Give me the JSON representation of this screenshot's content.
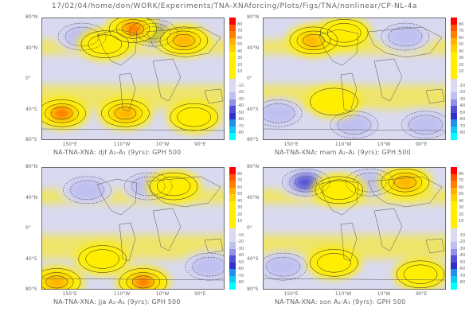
{
  "header": {
    "path": "17/02/04/home/don/WORK/Experiments/TNA-XNAforcing/Plots/Figs/TNA/nonlinear/CP-NL-4a"
  },
  "colors": {
    "scale": [
      "#ff0000",
      "#ff5500",
      "#ff8000",
      "#ffb000",
      "#ffd000",
      "#ffee00",
      "#ffee00",
      "#ffee00",
      "#ffee00",
      "#dadaf2",
      "#dadaf2",
      "#c0c0f0",
      "#9090e6",
      "#5050d2",
      "#3030c8",
      "#2090e8",
      "#10c8f0",
      "#00ffff"
    ]
  },
  "colorbar_labels": [
    "80",
    "70",
    "60",
    "50",
    "40",
    "30",
    "20",
    "10",
    "",
    "-10",
    "-20",
    "-30",
    "-40",
    "-50",
    "-60",
    "-70",
    "-80"
  ],
  "panels": [
    {
      "id": "djf",
      "caption": "NA-TNA-XNA: djf A₂-A₁ (9yrs): GPH 500",
      "ylabels": [
        "80°N",
        "40°N",
        "0°",
        "40°S",
        "80°S"
      ],
      "xlabels": [
        "150°E",
        "110°W",
        "10°W",
        "90°E"
      ]
    },
    {
      "id": "mam",
      "caption": "NA-TNA-XNA: mam A₂-A₁ (9yrs): GPH 500",
      "ylabels": [
        "80°N",
        "40°N",
        "0°",
        "40°S",
        "80°S"
      ],
      "xlabels": [
        "150°E",
        "110°W",
        "10°W",
        "90°E"
      ]
    },
    {
      "id": "jja",
      "caption": "NA-TNA-XNA: jja A₂-A₁ (9yrs): GPH 500",
      "ylabels": [
        "80°N",
        "40°N",
        "0°",
        "40°S",
        "80°S"
      ],
      "xlabels": [
        "150°E",
        "110°W",
        "10°W",
        "90°E"
      ]
    },
    {
      "id": "son",
      "caption": "NA-TNA-XNA: son A₂-A₁ (9yrs): GPH 500",
      "ylabels": [
        "80°N",
        "40°N",
        "0°",
        "40°S",
        "80°S"
      ],
      "xlabels": [
        "150°E",
        "110°W",
        "10°W",
        "90°E"
      ]
    }
  ],
  "chart_data": [
    {
      "type": "heatmap",
      "field": "GPH 500 anomaly A2-A1",
      "season": "djf",
      "levels": [
        -80,
        -70,
        -60,
        -50,
        -40,
        -30,
        -20,
        -10,
        10,
        20,
        30,
        40,
        50,
        60,
        70,
        80
      ],
      "features": [
        {
          "lon": -160,
          "lat": 55,
          "value": -30
        },
        {
          "lon": -20,
          "lat": 60,
          "value": -70
        },
        {
          "lon": -60,
          "lat": 65,
          "value": 70
        },
        {
          "lon": -115,
          "lat": 45,
          "value": 40
        },
        {
          "lon": 40,
          "lat": 50,
          "value": 50
        },
        {
          "lon": 160,
          "lat": -45,
          "value": 70
        },
        {
          "lon": -75,
          "lat": -45,
          "value": 50
        },
        {
          "lon": 60,
          "lat": -50,
          "value": 40
        }
      ]
    },
    {
      "type": "heatmap",
      "field": "GPH 500 anomaly A2-A1",
      "season": "mam",
      "levels": [
        -80,
        -70,
        -60,
        -50,
        -40,
        -30,
        -20,
        -10,
        10,
        20,
        30,
        40,
        50,
        60,
        70,
        80
      ],
      "features": [
        {
          "lon": -140,
          "lat": 50,
          "value": 50
        },
        {
          "lon": -80,
          "lat": 60,
          "value": 30
        },
        {
          "lon": 40,
          "lat": 55,
          "value": -30
        },
        {
          "lon": 150,
          "lat": -45,
          "value": -40
        },
        {
          "lon": -60,
          "lat": -60,
          "value": -40
        },
        {
          "lon": 80,
          "lat": -60,
          "value": -40
        },
        {
          "lon": -100,
          "lat": -30,
          "value": 20
        }
      ]
    },
    {
      "type": "heatmap",
      "field": "GPH 500 anomaly A2-A1",
      "season": "jja",
      "levels": [
        -80,
        -70,
        -60,
        -50,
        -40,
        -30,
        -20,
        -10,
        10,
        20,
        30,
        40,
        50,
        60,
        70,
        80
      ],
      "features": [
        {
          "lon": -150,
          "lat": 50,
          "value": -40
        },
        {
          "lon": -30,
          "lat": 55,
          "value": -40
        },
        {
          "lon": 20,
          "lat": 55,
          "value": 40
        },
        {
          "lon": -120,
          "lat": -40,
          "value": 30
        },
        {
          "lon": 150,
          "lat": -70,
          "value": 60
        },
        {
          "lon": -40,
          "lat": -70,
          "value": 70
        },
        {
          "lon": 90,
          "lat": -50,
          "value": -30
        }
      ]
    },
    {
      "type": "heatmap",
      "field": "GPH 500 anomaly A2-A1",
      "season": "son",
      "levels": [
        -80,
        -70,
        -60,
        -50,
        -40,
        -30,
        -20,
        -10,
        10,
        20,
        30,
        40,
        50,
        60,
        70,
        80
      ],
      "features": [
        {
          "lon": -155,
          "lat": 60,
          "value": -60
        },
        {
          "lon": -30,
          "lat": 60,
          "value": -40
        },
        {
          "lon": 40,
          "lat": 60,
          "value": 50
        },
        {
          "lon": -90,
          "lat": 50,
          "value": 40
        },
        {
          "lon": 160,
          "lat": -50,
          "value": -30
        },
        {
          "lon": -100,
          "lat": -45,
          "value": 30
        },
        {
          "lon": 70,
          "lat": -60,
          "value": 30
        }
      ]
    }
  ]
}
